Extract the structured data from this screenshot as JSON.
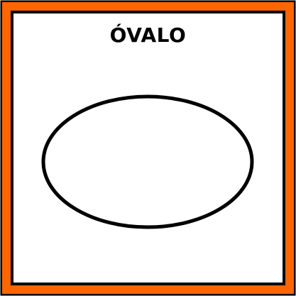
{
  "pictogram": {
    "title": "ÓVALO",
    "shape": "oval",
    "colors": {
      "frame_outer": "#000000",
      "frame_fill": "#ff6600",
      "background": "#ffffff",
      "shape_stroke": "#000000",
      "title_text": "#000000"
    }
  }
}
